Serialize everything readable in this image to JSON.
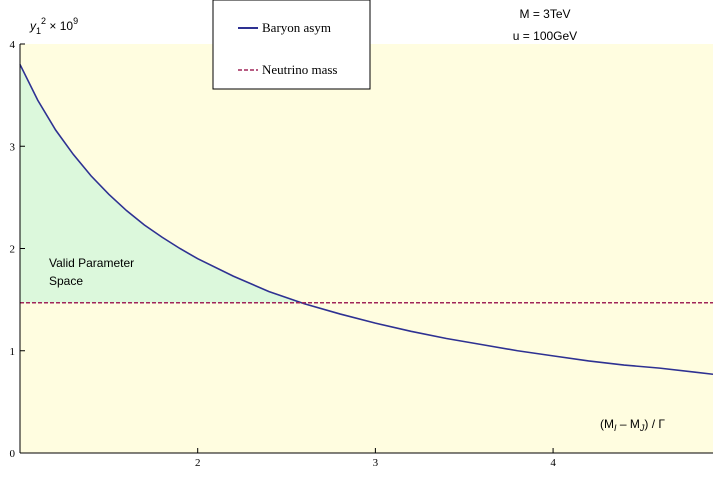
{
  "chart_data": {
    "type": "line",
    "ylabel_base": "y",
    "ylabel_sub": "1",
    "ylabel_sup": "2",
    "ylabel_rest": " × 10",
    "ylabel_exp": "9",
    "xlabel_parts": [
      "(M",
      "I",
      " – M",
      "J",
      ") / Γ"
    ],
    "xlim": [
      1.0,
      4.9
    ],
    "ylim": [
      0,
      4
    ],
    "x_ticks": [
      {
        "value": 2,
        "label": "2"
      },
      {
        "value": 3,
        "label": "3"
      },
      {
        "value": 4,
        "label": "4"
      }
    ],
    "y_ticks": [
      {
        "value": 0,
        "label": "0"
      },
      {
        "value": 1,
        "label": "1"
      },
      {
        "value": 2,
        "label": "2"
      },
      {
        "value": 3,
        "label": "3"
      },
      {
        "value": 4,
        "label": "4"
      }
    ],
    "series": [
      {
        "name": "Baryon asym",
        "color": "#2e3192",
        "style": "solid",
        "x": [
          1.0,
          1.1,
          1.2,
          1.3,
          1.4,
          1.5,
          1.6,
          1.7,
          1.8,
          1.9,
          2.0,
          2.2,
          2.4,
          2.6,
          2.8,
          3.0,
          3.2,
          3.4,
          3.6,
          3.8,
          4.0,
          4.2,
          4.4,
          4.6,
          4.8,
          4.9
        ],
        "y": [
          3.8,
          3.45,
          3.16,
          2.92,
          2.71,
          2.53,
          2.37,
          2.23,
          2.11,
          2.0,
          1.9,
          1.73,
          1.58,
          1.46,
          1.36,
          1.27,
          1.19,
          1.12,
          1.06,
          1.0,
          0.95,
          0.9,
          0.86,
          0.83,
          0.79,
          0.77
        ]
      },
      {
        "name": "Neutrino mass",
        "color": "#a0265a",
        "style": "dashed",
        "x": [
          1.0,
          4.9
        ],
        "y": [
          1.47,
          1.47
        ]
      }
    ],
    "regions": {
      "background_color": "#fffde0",
      "valid_color": "#dcf8dc",
      "valid_label_lines": [
        "Valid Parameter",
        "Space"
      ]
    },
    "annotations": [
      "M = 3TeV",
      "u = 100GeV"
    ],
    "legend_position": "top-center"
  }
}
